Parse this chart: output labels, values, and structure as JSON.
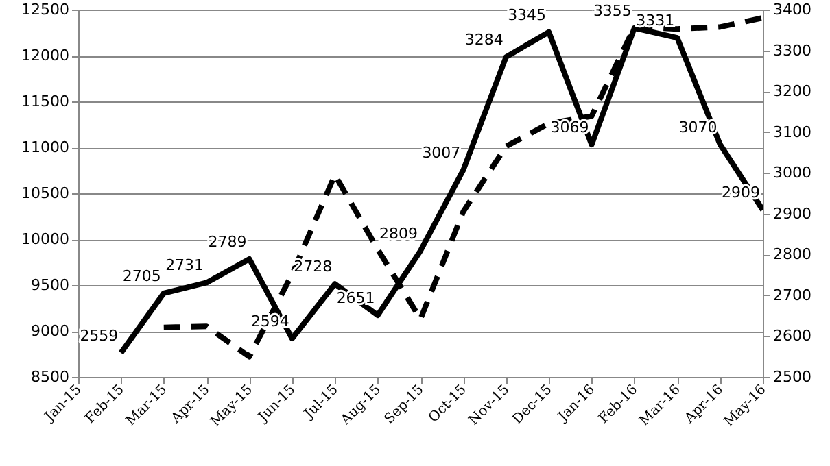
{
  "chart_data": {
    "type": "line",
    "categories": [
      "Jan-15",
      "Feb-15",
      "Mar-15",
      "Apr-15",
      "May-15",
      "Jun-15",
      "Jul-15",
      "Aug-15",
      "Sep-15",
      "Oct-15",
      "Nov-15",
      "Dec-15",
      "Jan-16",
      "Feb-16",
      "Mar-16",
      "Apr-16",
      "May-16"
    ],
    "series": [
      {
        "color": "#000000",
        "line_style": "dashed",
        "values": [
          null,
          null,
          9040,
          9050,
          8720,
          9620,
          10700,
          9890,
          9130,
          10300,
          11010,
          11260,
          11340,
          12310,
          12290,
          12310,
          12410
        ]
      },
      {
        "color": "#000000",
        "line_style": "solid",
        "axis": "y2",
        "values": [
          null,
          2559,
          2705,
          2731,
          2789,
          2594,
          2728,
          2651,
          2809,
          3007,
          3284,
          3345,
          3069,
          3355,
          3331,
          3070,
          2909
        ],
        "value_labels": [
          null,
          "2559",
          "2705",
          "2731",
          "2789",
          "2594",
          "2728",
          "2651",
          "2809",
          "3007",
          "3284",
          "3345",
          "3069",
          "3355",
          "3331",
          "3070",
          "2909"
        ]
      }
    ],
    "ylim": [
      8500,
      12500
    ],
    "yticks": [
      8500,
      9000,
      9500,
      10000,
      10500,
      11000,
      11500,
      12000,
      12500
    ],
    "y2lim": [
      2500,
      3400
    ],
    "y2ticks": [
      2500,
      2600,
      2700,
      2800,
      2900,
      3000,
      3100,
      3200,
      3300,
      3400
    ],
    "grid": "y",
    "marker": "none"
  }
}
